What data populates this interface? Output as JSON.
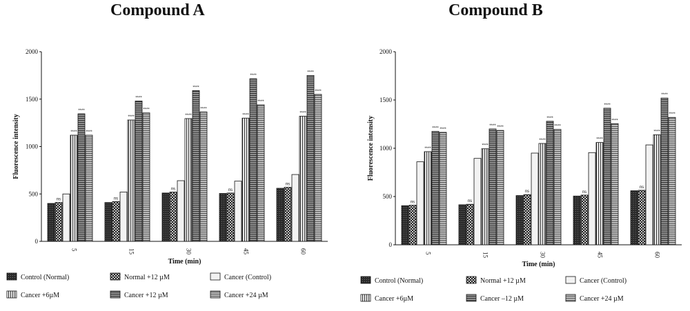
{
  "chart_data": [
    {
      "type": "bar",
      "title": "Compound A",
      "xlabel": "Time (min)",
      "ylabel": "Fluorescence intensity",
      "ylim": [
        0,
        2000
      ],
      "yticks": [
        0,
        500,
        1000,
        1500,
        2000
      ],
      "categories": [
        "5",
        "15",
        "30",
        "45",
        "60"
      ],
      "legend_position": "bottom",
      "series": [
        {
          "name": "Control (Normal)",
          "pattern": "dark",
          "values": [
            400,
            410,
            510,
            505,
            560
          ],
          "significance": [
            "",
            "",
            "",
            "",
            ""
          ]
        },
        {
          "name": "Normal +12 µM",
          "pattern": "check",
          "values": [
            410,
            420,
            520,
            510,
            570
          ],
          "significance": [
            "ns",
            "ns",
            "ns",
            "ns",
            "ns"
          ]
        },
        {
          "name": "Cancer (Control)",
          "pattern": "light",
          "values": [
            500,
            520,
            640,
            635,
            705
          ],
          "significance": [
            "",
            "",
            "",
            "",
            ""
          ]
        },
        {
          "name": "Cancer +6µM",
          "pattern": "vstripe",
          "values": [
            1120,
            1280,
            1295,
            1300,
            1320
          ],
          "significance": [
            "****",
            "****",
            "****",
            "****",
            "****"
          ]
        },
        {
          "name": "Cancer +12 µM",
          "pattern": "hstripe",
          "values": [
            1345,
            1480,
            1590,
            1715,
            1750
          ],
          "significance": [
            "****",
            "****",
            "****",
            "****",
            "****"
          ]
        },
        {
          "name": "Cancer +24 µM",
          "pattern": "hstripe2",
          "values": [
            1120,
            1355,
            1365,
            1440,
            1550
          ],
          "significance": [
            "****",
            "****",
            "****",
            "****",
            "****"
          ]
        }
      ]
    },
    {
      "type": "bar",
      "title": "Compound B",
      "xlabel": "Time (min)",
      "ylabel": "Fluorescence intensity",
      "ylim": [
        0,
        2000
      ],
      "yticks": [
        0,
        500,
        1000,
        1500,
        2000
      ],
      "categories": [
        "5",
        "15",
        "30",
        "45",
        "60"
      ],
      "legend_position": "bottom",
      "series": [
        {
          "name": "Control (Normal)",
          "pattern": "dark",
          "values": [
            405,
            415,
            510,
            505,
            560
          ],
          "significance": [
            "",
            "",
            "",
            "",
            ""
          ]
        },
        {
          "name": "Normal +12 µM",
          "pattern": "check",
          "values": [
            410,
            420,
            520,
            515,
            565
          ],
          "significance": [
            "ns",
            "ns",
            "ns",
            "ns",
            "ns"
          ]
        },
        {
          "name": "Cancer (Control)",
          "pattern": "light",
          "values": [
            860,
            895,
            950,
            955,
            1035
          ],
          "significance": [
            "",
            "",
            "",
            "",
            ""
          ]
        },
        {
          "name": "Cancer +6µM",
          "pattern": "vstripe",
          "values": [
            965,
            995,
            1050,
            1060,
            1140
          ],
          "significance": [
            "****",
            "****",
            "****",
            "****",
            "****"
          ]
        },
        {
          "name": "Cancer –12 µM",
          "pattern": "hstripe",
          "values": [
            1175,
            1200,
            1280,
            1415,
            1520
          ],
          "significance": [
            "****",
            "****",
            "****",
            "****",
            "****"
          ]
        },
        {
          "name": "Cancer +24 µM",
          "pattern": "hstripe2",
          "values": [
            1165,
            1185,
            1195,
            1255,
            1320
          ],
          "significance": [
            "****",
            "****",
            "****",
            "****",
            "****"
          ]
        }
      ]
    }
  ]
}
